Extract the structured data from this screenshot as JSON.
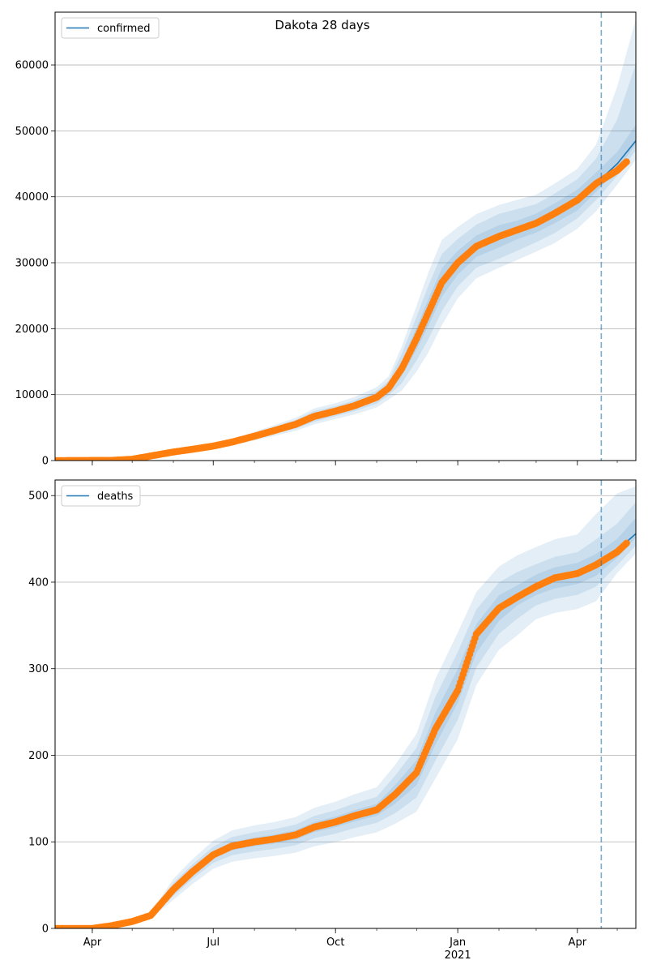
{
  "chart_data": [
    {
      "type": "line",
      "title": "Dakota 28 days",
      "legend": "confirmed",
      "legend_position": "top-left",
      "xlabel": "",
      "ylabel": "",
      "grid": "horizontal",
      "x_ticks_major": [
        {
          "date": "2020-04-01",
          "label": "Apr",
          "sublabel": ""
        },
        {
          "date": "2020-07-01",
          "label": "Jul",
          "sublabel": ""
        },
        {
          "date": "2020-10-01",
          "label": "Oct",
          "sublabel": ""
        },
        {
          "date": "2021-01-01",
          "label": "Jan",
          "sublabel": "2021"
        },
        {
          "date": "2021-04-01",
          "label": "Apr",
          "sublabel": ""
        }
      ],
      "xlim": [
        "2020-03-04",
        "2021-05-15"
      ],
      "ylim": [
        0,
        68000
      ],
      "yticks": [
        0,
        10000,
        20000,
        30000,
        40000,
        50000,
        60000
      ],
      "forecast_start": "2021-04-19",
      "line_color": "#1f77b4",
      "marker_color": "#ff7f0e",
      "band_color": "#1f77b4",
      "observed": [
        [
          "2020-03-04",
          0
        ],
        [
          "2020-04-15",
          30
        ],
        [
          "2020-05-01",
          200
        ],
        [
          "2020-05-15",
          700
        ],
        [
          "2020-06-01",
          1300
        ],
        [
          "2020-06-15",
          1700
        ],
        [
          "2020-07-01",
          2200
        ],
        [
          "2020-07-15",
          2800
        ],
        [
          "2020-08-01",
          3700
        ],
        [
          "2020-08-15",
          4500
        ],
        [
          "2020-09-01",
          5500
        ],
        [
          "2020-09-15",
          6700
        ],
        [
          "2020-10-01",
          7500
        ],
        [
          "2020-10-15",
          8300
        ],
        [
          "2020-11-01",
          9600
        ],
        [
          "2020-11-10",
          11000
        ],
        [
          "2020-11-20",
          14000
        ],
        [
          "2020-12-01",
          18500
        ],
        [
          "2020-12-10",
          22500
        ],
        [
          "2020-12-20",
          27000
        ],
        [
          "2021-01-01",
          30000
        ],
        [
          "2021-01-15",
          32500
        ],
        [
          "2021-02-01",
          34000
        ],
        [
          "2021-02-15",
          35000
        ],
        [
          "2021-03-01",
          36000
        ],
        [
          "2021-03-15",
          37500
        ],
        [
          "2021-04-01",
          39500
        ],
        [
          "2021-04-15",
          42000
        ],
        [
          "2021-05-01",
          44000
        ],
        [
          "2021-05-08",
          45300
        ]
      ],
      "fit": [
        [
          "2020-03-04",
          0
        ],
        [
          "2020-04-15",
          30
        ],
        [
          "2020-05-01",
          200
        ],
        [
          "2020-05-15",
          700
        ],
        [
          "2020-06-01",
          1300
        ],
        [
          "2020-06-15",
          1700
        ],
        [
          "2020-07-01",
          2200
        ],
        [
          "2020-07-15",
          2800
        ],
        [
          "2020-08-01",
          3700
        ],
        [
          "2020-08-15",
          4500
        ],
        [
          "2020-09-01",
          5500
        ],
        [
          "2020-09-15",
          6700
        ],
        [
          "2020-10-01",
          7500
        ],
        [
          "2020-10-15",
          8300
        ],
        [
          "2020-11-01",
          9600
        ],
        [
          "2020-11-10",
          11000
        ],
        [
          "2020-11-20",
          14000
        ],
        [
          "2020-12-01",
          18500
        ],
        [
          "2020-12-10",
          22500
        ],
        [
          "2020-12-20",
          27000
        ],
        [
          "2021-01-01",
          30000
        ],
        [
          "2021-01-15",
          32500
        ],
        [
          "2021-02-01",
          34000
        ],
        [
          "2021-02-15",
          35000
        ],
        [
          "2021-03-01",
          36000
        ],
        [
          "2021-03-15",
          37500
        ],
        [
          "2021-04-01",
          39500
        ],
        [
          "2021-04-15",
          42000
        ],
        [
          "2021-05-01",
          45000
        ],
        [
          "2021-05-15",
          48500
        ]
      ],
      "bands": [
        {
          "lower": [
            0.95,
            0.95,
            0.95,
            0.96,
            0.96,
            0.96,
            0.96,
            0.96,
            0.94,
            0.94,
            0.94,
            0.94,
            0.95,
            0.95,
            0.95,
            0.95,
            0.92,
            0.91,
            0.91,
            0.92,
            0.94,
            0.95,
            0.95,
            0.96,
            0.96,
            0.96,
            0.96,
            0.97,
            0.98,
            0.99
          ],
          "upper": [
            1.05,
            1.05,
            1.05,
            1.04,
            1.04,
            1.04,
            1.04,
            1.04,
            1.06,
            1.06,
            1.06,
            1.06,
            1.05,
            1.05,
            1.05,
            1.05,
            1.08,
            1.09,
            1.09,
            1.08,
            1.06,
            1.05,
            1.05,
            1.04,
            1.04,
            1.04,
            1.04,
            1.04,
            1.04,
            1.05
          ]
        },
        {
          "lower": [
            0.9,
            0.9,
            0.9,
            0.9,
            0.9,
            0.9,
            0.9,
            0.9,
            0.88,
            0.88,
            0.88,
            0.88,
            0.9,
            0.9,
            0.9,
            0.9,
            0.84,
            0.82,
            0.82,
            0.84,
            0.88,
            0.9,
            0.9,
            0.91,
            0.92,
            0.92,
            0.93,
            0.94,
            0.96,
            0.97
          ],
          "upper": [
            1.1,
            1.1,
            1.1,
            1.1,
            1.1,
            1.1,
            1.1,
            1.1,
            1.12,
            1.12,
            1.12,
            1.12,
            1.1,
            1.1,
            1.1,
            1.1,
            1.16,
            1.18,
            1.18,
            1.16,
            1.12,
            1.1,
            1.1,
            1.09,
            1.08,
            1.08,
            1.08,
            1.09,
            1.15,
            1.24
          ]
        },
        {
          "lower": [
            0.84,
            0.84,
            0.84,
            0.85,
            0.85,
            0.85,
            0.85,
            0.85,
            0.82,
            0.82,
            0.82,
            0.82,
            0.84,
            0.84,
            0.84,
            0.84,
            0.76,
            0.73,
            0.73,
            0.76,
            0.82,
            0.85,
            0.86,
            0.87,
            0.88,
            0.88,
            0.89,
            0.9,
            0.93,
            0.94
          ],
          "upper": [
            1.16,
            1.16,
            1.16,
            1.15,
            1.15,
            1.15,
            1.15,
            1.15,
            1.18,
            1.18,
            1.18,
            1.18,
            1.16,
            1.16,
            1.16,
            1.16,
            1.24,
            1.27,
            1.27,
            1.24,
            1.18,
            1.15,
            1.14,
            1.13,
            1.12,
            1.12,
            1.12,
            1.14,
            1.26,
            1.38
          ]
        }
      ]
    },
    {
      "type": "line",
      "title": "",
      "legend": "deaths",
      "legend_position": "top-left",
      "xlabel": "",
      "ylabel": "",
      "grid": "horizontal",
      "x_ticks_major": [
        {
          "date": "2020-04-01",
          "label": "Apr",
          "sublabel": ""
        },
        {
          "date": "2020-07-01",
          "label": "Jul",
          "sublabel": ""
        },
        {
          "date": "2020-10-01",
          "label": "Oct",
          "sublabel": ""
        },
        {
          "date": "2021-01-01",
          "label": "Jan",
          "sublabel": "2021"
        },
        {
          "date": "2021-04-01",
          "label": "Apr",
          "sublabel": ""
        }
      ],
      "xlim": [
        "2020-03-04",
        "2021-05-15"
      ],
      "ylim": [
        0,
        518
      ],
      "yticks": [
        0,
        100,
        200,
        300,
        400,
        500
      ],
      "forecast_start": "2021-04-19",
      "line_color": "#1f77b4",
      "marker_color": "#ff7f0e",
      "band_color": "#1f77b4",
      "observed": [
        [
          "2020-03-04",
          0
        ],
        [
          "2020-04-01",
          0
        ],
        [
          "2020-04-15",
          3
        ],
        [
          "2020-05-01",
          8
        ],
        [
          "2020-05-15",
          15
        ],
        [
          "2020-06-01",
          45
        ],
        [
          "2020-06-15",
          65
        ],
        [
          "2020-07-01",
          85
        ],
        [
          "2020-07-15",
          95
        ],
        [
          "2020-08-01",
          100
        ],
        [
          "2020-08-15",
          103
        ],
        [
          "2020-09-01",
          108
        ],
        [
          "2020-09-15",
          117
        ],
        [
          "2020-10-01",
          123
        ],
        [
          "2020-10-15",
          130
        ],
        [
          "2020-11-01",
          137
        ],
        [
          "2020-11-15",
          155
        ],
        [
          "2020-12-01",
          180
        ],
        [
          "2020-12-15",
          230
        ],
        [
          "2021-01-01",
          275
        ],
        [
          "2021-01-15",
          340
        ],
        [
          "2021-02-01",
          370
        ],
        [
          "2021-02-15",
          383
        ],
        [
          "2021-03-01",
          395
        ],
        [
          "2021-03-15",
          405
        ],
        [
          "2021-04-01",
          410
        ],
        [
          "2021-04-15",
          420
        ],
        [
          "2021-05-01",
          435
        ],
        [
          "2021-05-08",
          445
        ]
      ],
      "fit": [
        [
          "2020-03-04",
          0
        ],
        [
          "2020-04-01",
          0
        ],
        [
          "2020-04-15",
          3
        ],
        [
          "2020-05-01",
          8
        ],
        [
          "2020-05-15",
          15
        ],
        [
          "2020-06-01",
          45
        ],
        [
          "2020-06-15",
          65
        ],
        [
          "2020-07-01",
          85
        ],
        [
          "2020-07-15",
          95
        ],
        [
          "2020-08-01",
          100
        ],
        [
          "2020-08-15",
          103
        ],
        [
          "2020-09-01",
          108
        ],
        [
          "2020-09-15",
          117
        ],
        [
          "2020-10-01",
          123
        ],
        [
          "2020-10-15",
          130
        ],
        [
          "2020-11-01",
          137
        ],
        [
          "2020-11-15",
          155
        ],
        [
          "2020-12-01",
          180
        ],
        [
          "2020-12-15",
          230
        ],
        [
          "2021-01-01",
          280
        ],
        [
          "2021-01-15",
          335
        ],
        [
          "2021-02-01",
          370
        ],
        [
          "2021-02-15",
          385
        ],
        [
          "2021-03-01",
          397
        ],
        [
          "2021-03-15",
          405
        ],
        [
          "2021-04-01",
          410
        ],
        [
          "2021-04-15",
          420
        ],
        [
          "2021-05-01",
          437
        ],
        [
          "2021-05-15",
          456
        ]
      ],
      "bands": [
        {
          "lower": [
            1,
            1,
            0.95,
            0.95,
            0.93,
            0.92,
            0.94,
            0.95,
            0.95,
            0.95,
            0.95,
            0.95,
            0.95,
            0.95,
            0.95,
            0.95,
            0.93,
            0.92,
            0.92,
            0.93,
            0.95,
            0.96,
            0.97,
            0.97,
            0.97,
            0.97,
            0.97,
            0.98,
            0.99
          ],
          "upper": [
            1,
            1,
            1.05,
            1.05,
            1.07,
            1.08,
            1.06,
            1.05,
            1.05,
            1.05,
            1.05,
            1.05,
            1.05,
            1.05,
            1.05,
            1.05,
            1.07,
            1.08,
            1.08,
            1.07,
            1.05,
            1.04,
            1.03,
            1.03,
            1.03,
            1.03,
            1.03,
            1.03,
            1.04
          ]
        },
        {
          "lower": [
            1,
            1,
            0.88,
            0.88,
            0.85,
            0.83,
            0.87,
            0.89,
            0.89,
            0.89,
            0.89,
            0.89,
            0.89,
            0.89,
            0.89,
            0.89,
            0.86,
            0.84,
            0.84,
            0.86,
            0.9,
            0.92,
            0.93,
            0.94,
            0.94,
            0.94,
            0.94,
            0.96,
            0.97
          ],
          "upper": [
            1,
            1,
            1.12,
            1.12,
            1.15,
            1.17,
            1.13,
            1.11,
            1.11,
            1.11,
            1.11,
            1.11,
            1.11,
            1.11,
            1.11,
            1.11,
            1.14,
            1.16,
            1.16,
            1.14,
            1.1,
            1.08,
            1.07,
            1.06,
            1.06,
            1.06,
            1.07,
            1.07,
            1.08
          ]
        },
        {
          "lower": [
            1,
            1,
            0.8,
            0.8,
            0.76,
            0.73,
            0.78,
            0.81,
            0.81,
            0.81,
            0.81,
            0.81,
            0.81,
            0.81,
            0.81,
            0.81,
            0.78,
            0.75,
            0.75,
            0.78,
            0.84,
            0.87,
            0.88,
            0.9,
            0.9,
            0.9,
            0.9,
            0.94,
            0.95
          ],
          "upper": [
            1,
            1,
            1.2,
            1.2,
            1.24,
            1.27,
            1.22,
            1.19,
            1.19,
            1.19,
            1.19,
            1.19,
            1.19,
            1.19,
            1.19,
            1.19,
            1.22,
            1.25,
            1.25,
            1.22,
            1.16,
            1.13,
            1.12,
            1.11,
            1.11,
            1.11,
            1.14,
            1.15,
            1.12
          ]
        }
      ]
    }
  ]
}
